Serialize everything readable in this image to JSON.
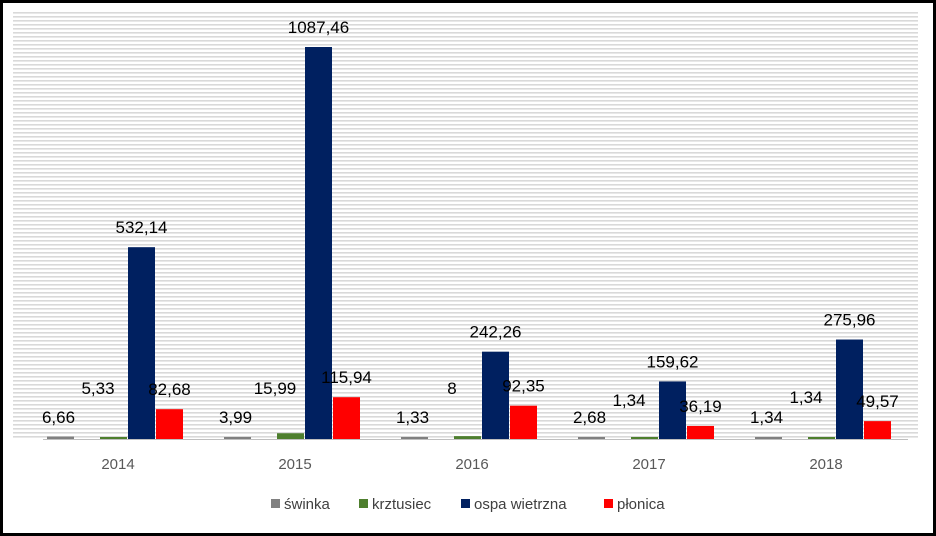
{
  "chart_data": {
    "type": "bar",
    "categories": [
      "2014",
      "2015",
      "2016",
      "2017",
      "2018"
    ],
    "series": [
      {
        "name": "świnka",
        "color": "#808080",
        "values": [
          6.66,
          3.99,
          1.33,
          2.68,
          1.34
        ],
        "labels": [
          "6,66",
          "3,99",
          "1,33",
          "2,68",
          "1,34"
        ]
      },
      {
        "name": "krztusiec",
        "color": "#4E7F2E",
        "values": [
          5.33,
          15.99,
          8,
          1.34,
          1.34
        ],
        "labels": [
          "5,33",
          "15,99",
          "8",
          "1,34",
          "1,34"
        ]
      },
      {
        "name": "ospa wietrzna",
        "color": "#002060",
        "values": [
          532.14,
          1087.46,
          242.26,
          159.62,
          275.96
        ],
        "labels": [
          "532,14",
          "1087,46",
          "242,26",
          "159,62",
          "275,96"
        ]
      },
      {
        "name": "płonica",
        "color": "#FF0000",
        "values": [
          82.68,
          115.94,
          92.35,
          36.19,
          49.57
        ],
        "labels": [
          "82,68",
          "115,94",
          "92,35",
          "36,19",
          "49,57"
        ]
      }
    ],
    "ylim": [
      0,
      1100
    ],
    "grid": true,
    "legend_position": "bottom",
    "title": "",
    "xlabel": "",
    "ylabel": ""
  }
}
